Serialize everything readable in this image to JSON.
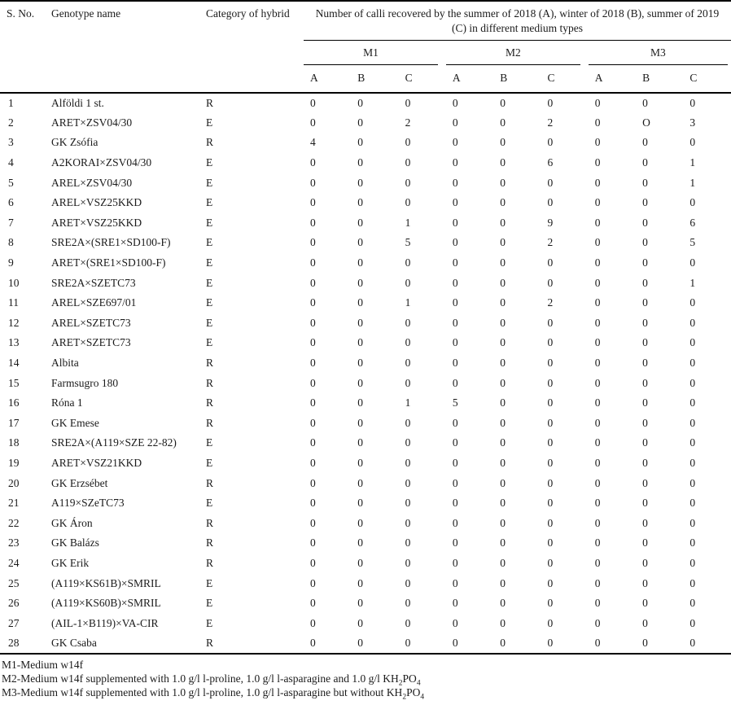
{
  "table": {
    "columns": {
      "sno": "S. No.",
      "genotype": "Genotype name",
      "category": "Category of hybrid",
      "calli_header": "Number of calli recovered by the summer of 2018 (A), winter of 2018 (B), summer of 2019 (C) in different medium types",
      "medium_groups": [
        "M1",
        "M2",
        "M3"
      ],
      "subcols": [
        "A",
        "B",
        "C"
      ]
    },
    "rows": [
      {
        "sno": "1",
        "genotype": "Alföldi 1 st.",
        "category": "R",
        "values": [
          "0",
          "0",
          "0",
          "0",
          "0",
          "0",
          "0",
          "0",
          "0"
        ]
      },
      {
        "sno": "2",
        "genotype": "ARET×ZSV04/30",
        "category": "E",
        "values": [
          "0",
          "0",
          "2",
          "0",
          "0",
          "2",
          "0",
          "O",
          "3"
        ]
      },
      {
        "sno": "3",
        "genotype": "GK Zsófia",
        "category": "R",
        "values": [
          "4",
          "0",
          "0",
          "0",
          "0",
          "0",
          "0",
          "0",
          "0"
        ]
      },
      {
        "sno": "4",
        "genotype": "A2KORAI×ZSV04/30",
        "category": "E",
        "values": [
          "0",
          "0",
          "0",
          "0",
          "0",
          "6",
          "0",
          "0",
          "1"
        ]
      },
      {
        "sno": "5",
        "genotype": "AREL×ZSV04/30",
        "category": "E",
        "values": [
          "0",
          "0",
          "0",
          "0",
          "0",
          "0",
          "0",
          "0",
          "1"
        ]
      },
      {
        "sno": "6",
        "genotype": "AREL×VSZ25KKD",
        "category": "E",
        "values": [
          "0",
          "0",
          "0",
          "0",
          "0",
          "0",
          "0",
          "0",
          "0"
        ]
      },
      {
        "sno": "7",
        "genotype": "ARET×VSZ25KKD",
        "category": "E",
        "values": [
          "0",
          "0",
          "1",
          "0",
          "0",
          "9",
          "0",
          "0",
          "6"
        ]
      },
      {
        "sno": "8",
        "genotype": "SRE2A×(SRE1×SD100-F)",
        "category": "E",
        "values": [
          "0",
          "0",
          "5",
          "0",
          "0",
          "2",
          "0",
          "0",
          "5"
        ]
      },
      {
        "sno": "9",
        "genotype": "ARET×(SRE1×SD100-F)",
        "category": "E",
        "values": [
          "0",
          "0",
          "0",
          "0",
          "0",
          "0",
          "0",
          "0",
          "0"
        ]
      },
      {
        "sno": "10",
        "genotype": "SRE2A×SZETC73",
        "category": "E",
        "values": [
          "0",
          "0",
          "0",
          "0",
          "0",
          "0",
          "0",
          "0",
          "1"
        ]
      },
      {
        "sno": "11",
        "genotype": "AREL×SZE697/01",
        "category": "E",
        "values": [
          "0",
          "0",
          "1",
          "0",
          "0",
          "2",
          "0",
          "0",
          "0"
        ]
      },
      {
        "sno": "12",
        "genotype": "AREL×SZETC73",
        "category": "E",
        "values": [
          "0",
          "0",
          "0",
          "0",
          "0",
          "0",
          "0",
          "0",
          "0"
        ]
      },
      {
        "sno": "13",
        "genotype": "ARET×SZETC73",
        "category": "E",
        "values": [
          "0",
          "0",
          "0",
          "0",
          "0",
          "0",
          "0",
          "0",
          "0"
        ]
      },
      {
        "sno": "14",
        "genotype": "Albita",
        "category": "R",
        "values": [
          "0",
          "0",
          "0",
          "0",
          "0",
          "0",
          "0",
          "0",
          "0"
        ]
      },
      {
        "sno": "15",
        "genotype": "Farmsugro 180",
        "category": "R",
        "values": [
          "0",
          "0",
          "0",
          "0",
          "0",
          "0",
          "0",
          "0",
          "0"
        ]
      },
      {
        "sno": "16",
        "genotype": "Róna 1",
        "category": "R",
        "values": [
          "0",
          "0",
          "1",
          "5",
          "0",
          "0",
          "0",
          "0",
          "0"
        ]
      },
      {
        "sno": "17",
        "genotype": "GK Emese",
        "category": "R",
        "values": [
          "0",
          "0",
          "0",
          "0",
          "0",
          "0",
          "0",
          "0",
          "0"
        ]
      },
      {
        "sno": "18",
        "genotype": "SRE2A×(A119×SZE 22-82)",
        "category": "E",
        "values": [
          "0",
          "0",
          "0",
          "0",
          "0",
          "0",
          "0",
          "0",
          "0"
        ]
      },
      {
        "sno": "19",
        "genotype": "ARET×VSZ21KKD",
        "category": "E",
        "values": [
          "0",
          "0",
          "0",
          "0",
          "0",
          "0",
          "0",
          "0",
          "0"
        ]
      },
      {
        "sno": "20",
        "genotype": "GK Erzsébet",
        "category": "R",
        "values": [
          "0",
          "0",
          "0",
          "0",
          "0",
          "0",
          "0",
          "0",
          "0"
        ]
      },
      {
        "sno": "21",
        "genotype": "A119×SZeTC73",
        "category": "E",
        "values": [
          "0",
          "0",
          "0",
          "0",
          "0",
          "0",
          "0",
          "0",
          "0"
        ]
      },
      {
        "sno": "22",
        "genotype": "GK Áron",
        "category": "R",
        "values": [
          "0",
          "0",
          "0",
          "0",
          "0",
          "0",
          "0",
          "0",
          "0"
        ]
      },
      {
        "sno": "23",
        "genotype": "GK Balázs",
        "category": "R",
        "values": [
          "0",
          "0",
          "0",
          "0",
          "0",
          "0",
          "0",
          "0",
          "0"
        ]
      },
      {
        "sno": "24",
        "genotype": "GK Erik",
        "category": "R",
        "values": [
          "0",
          "0",
          "0",
          "0",
          "0",
          "0",
          "0",
          "0",
          "0"
        ]
      },
      {
        "sno": "25",
        "genotype": "(A119×KS61B)×SMRIL",
        "category": "E",
        "values": [
          "0",
          "0",
          "0",
          "0",
          "0",
          "0",
          "0",
          "0",
          "0"
        ]
      },
      {
        "sno": "26",
        "genotype": "(A119×KS60B)×SMRIL",
        "category": "E",
        "values": [
          "0",
          "0",
          "0",
          "0",
          "0",
          "0",
          "0",
          "0",
          "0"
        ]
      },
      {
        "sno": "27",
        "genotype": "(AIL-1×B119)×VA-CIR",
        "category": "E",
        "values": [
          "0",
          "0",
          "0",
          "0",
          "0",
          "0",
          "0",
          "0",
          "0"
        ]
      },
      {
        "sno": "28",
        "genotype": "GK Csaba",
        "category": "R",
        "values": [
          "0",
          "0",
          "0",
          "0",
          "0",
          "0",
          "0",
          "0",
          "0"
        ]
      }
    ],
    "footnotes": [
      {
        "text": "M1-Medium w14f"
      },
      {
        "text": "M2-Medium w14f supplemented with 1.0 g/l l-proline, 1.0 g/l l-asparagine and 1.0 g/l ",
        "chem_pre": "KH",
        "chem_sub1": "2",
        "chem_mid": "PO",
        "chem_sub2": "4"
      },
      {
        "text": "M3-Medium w14f supplemented with 1.0 g/l l-proline, 1.0 g/l l-asparagine but without ",
        "chem_pre": "KH",
        "chem_sub1": "2",
        "chem_mid": "PO",
        "chem_sub2": "4"
      }
    ]
  }
}
